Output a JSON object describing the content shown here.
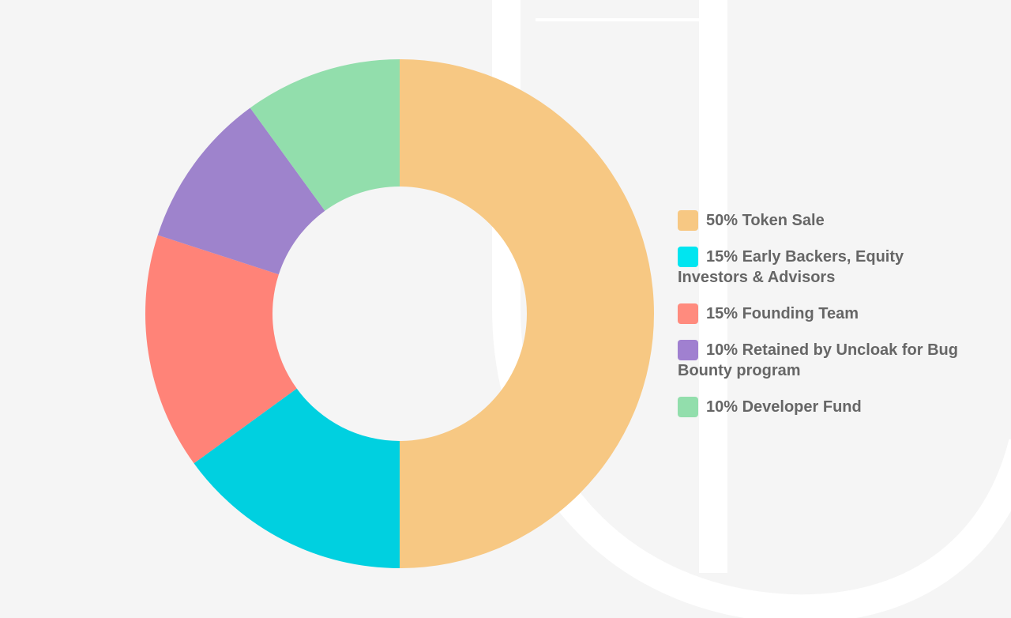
{
  "chart_data": {
    "type": "pie",
    "variant": "donut",
    "categories": [
      "Token Sale",
      "Early Backers, Equity Investors & Advisors",
      "Founding Team",
      "Retained by Uncloak for Bug Bounty program",
      "Developer Fund"
    ],
    "values": [
      50,
      15,
      15,
      10,
      10
    ],
    "colors": [
      "#f7c883",
      "#00d0e0",
      "#ff8378",
      "#9e83cc",
      "#92deac"
    ],
    "legend": {
      "placement": "right",
      "swatch_colors": [
        "#f7c883",
        "#00e5f0",
        "#ff8b7e",
        "#a080d0",
        "#92deac"
      ],
      "entries": [
        "50% Token Sale",
        "15% Early Backers, Equity Investors & Advisors",
        "15% Founding Team",
        "10% Retained by Uncloak for Bug Bounty program",
        "10% Developer Fund"
      ]
    }
  },
  "page": {
    "background": "#f5f5f5",
    "watermark_color": "#ffffff"
  }
}
